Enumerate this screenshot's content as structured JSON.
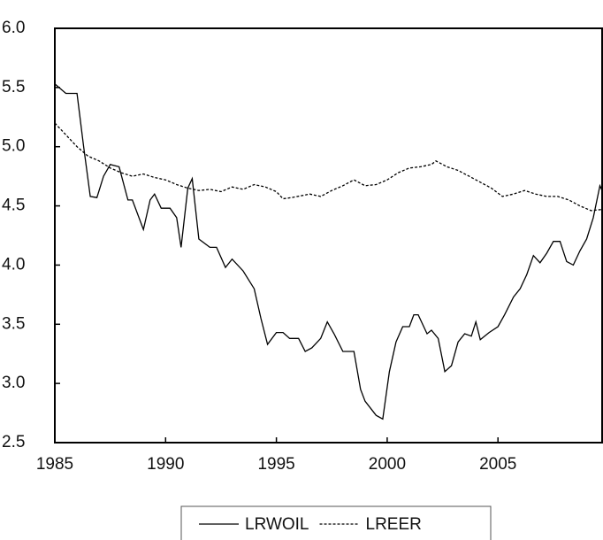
{
  "chart_data": {
    "type": "line",
    "xlim": [
      1985,
      2009.7
    ],
    "xticks": [
      1985,
      1990,
      1995,
      2000,
      2005
    ],
    "ylim": [
      2.5,
      6.0
    ],
    "yticks": [
      {
        "value": 2.5,
        "label": "2.5"
      },
      {
        "value": 3.0,
        "label": "3.0"
      },
      {
        "value": 3.5,
        "label": "3.5"
      },
      {
        "value": 4.0,
        "label": "4.0"
      },
      {
        "value": 4.5,
        "label": "4.5"
      },
      {
        "value": 5.0,
        "label": "5.0"
      },
      {
        "value": 5.5,
        "label": "5.5"
      },
      {
        "value": 6.0,
        "label": "6.0"
      }
    ],
    "legend": "bottom",
    "series": [
      {
        "name": "LRWOIL",
        "color": "#000000",
        "line_style": "solid",
        "x": [
          1985,
          1985.5,
          1986.0,
          1986.3,
          1986.6,
          1986.9,
          1987.2,
          1987.5,
          1987.9,
          1988.3,
          1988.5,
          1989.0,
          1989.3,
          1989.5,
          1989.8,
          1990.2,
          1990.5,
          1990.7,
          1991.0,
          1991.2,
          1991.5,
          1992.0,
          1992.3,
          1992.7,
          1993.0,
          1993.5,
          1994.0,
          1994.3,
          1994.6,
          1995.0,
          1995.3,
          1995.6,
          1996.0,
          1996.3,
          1996.6,
          1997.0,
          1997.3,
          1997.6,
          1998.0,
          1998.5,
          1998.8,
          1999.0,
          1999.5,
          1999.8,
          2000.1,
          2000.4,
          2000.7,
          2001.0,
          2001.2,
          2001.4,
          2001.8,
          2002.0,
          2002.3,
          2002.6,
          2002.9,
          2003.2,
          2003.5,
          2003.8,
          2004.0,
          2004.2,
          2004.6,
          2005.0,
          2005.3,
          2005.7,
          2006.0,
          2006.3,
          2006.6,
          2006.9,
          2007.2,
          2007.5,
          2007.8,
          2008.1,
          2008.4,
          2008.7,
          2009.0,
          2009.3,
          2009.6,
          2009.7
        ],
        "values": [
          5.53,
          5.45,
          5.45,
          5.0,
          4.58,
          4.57,
          4.75,
          4.85,
          4.83,
          4.55,
          4.55,
          4.3,
          4.55,
          4.6,
          4.48,
          4.48,
          4.4,
          4.15,
          4.65,
          4.73,
          4.22,
          4.15,
          4.15,
          3.98,
          4.05,
          3.95,
          3.8,
          3.55,
          3.33,
          3.43,
          3.43,
          3.38,
          3.38,
          3.27,
          3.3,
          3.38,
          3.52,
          3.42,
          3.27,
          3.27,
          2.95,
          2.85,
          2.73,
          2.7,
          3.1,
          3.35,
          3.48,
          3.48,
          3.58,
          3.58,
          3.42,
          3.45,
          3.38,
          3.1,
          3.15,
          3.35,
          3.42,
          3.4,
          3.52,
          3.37,
          3.43,
          3.48,
          3.58,
          3.73,
          3.8,
          3.92,
          4.08,
          4.02,
          4.1,
          4.2,
          4.2,
          4.03,
          4.0,
          4.12,
          4.22,
          4.4,
          4.67,
          4.63
        ]
      },
      {
        "name": "LREER",
        "color": "#000000",
        "line_style": "dashed",
        "x": [
          1985,
          1985.5,
          1986.0,
          1986.5,
          1987.0,
          1987.5,
          1988.0,
          1988.5,
          1989.0,
          1989.5,
          1990.0,
          1990.5,
          1991.0,
          1991.5,
          1992.0,
          1992.5,
          1993.0,
          1993.5,
          1994.0,
          1994.5,
          1995.0,
          1995.3,
          1995.7,
          1996.5,
          1997.0,
          1997.5,
          1998.0,
          1998.5,
          1999.0,
          1999.5,
          2000.0,
          2000.5,
          2001.0,
          2001.5,
          2002.0,
          2002.2,
          2002.7,
          2003.2,
          2003.7,
          2004.2,
          2004.7,
          2005.2,
          2005.7,
          2006.2,
          2006.7,
          2007.2,
          2007.7,
          2008.2,
          2008.7,
          2009.2,
          2009.7
        ],
        "values": [
          5.2,
          5.1,
          5.0,
          4.92,
          4.88,
          4.82,
          4.78,
          4.75,
          4.77,
          4.74,
          4.72,
          4.68,
          4.65,
          4.63,
          4.64,
          4.62,
          4.66,
          4.64,
          4.68,
          4.66,
          4.62,
          4.56,
          4.57,
          4.6,
          4.58,
          4.63,
          4.67,
          4.72,
          4.67,
          4.68,
          4.72,
          4.78,
          4.82,
          4.83,
          4.85,
          4.88,
          4.83,
          4.8,
          4.75,
          4.7,
          4.65,
          4.58,
          4.6,
          4.63,
          4.6,
          4.58,
          4.58,
          4.55,
          4.5,
          4.46,
          4.47
        ]
      }
    ]
  }
}
